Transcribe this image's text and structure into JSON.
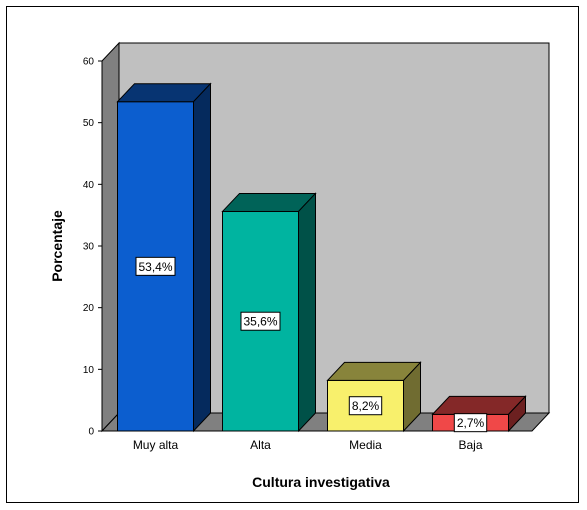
{
  "chart_data": {
    "type": "bar",
    "title": "",
    "xlabel": "Cultura investigativa",
    "ylabel": "Porcentaje",
    "categories": [
      "Muy alta",
      "Alta",
      "Media",
      "Baja"
    ],
    "values": [
      53.4,
      35.6,
      8.2,
      2.7
    ],
    "data_labels": [
      "53,4%",
      "35,6%",
      "8,2%",
      "2,7%"
    ],
    "ylim": [
      0,
      60
    ],
    "yticks": [
      0,
      10,
      20,
      30,
      40,
      50,
      60
    ],
    "bar_colors": [
      "#0c5ecf",
      "#00b4a0",
      "#f8f06c",
      "#f04848"
    ],
    "background_color": "#c0c0c0",
    "style": "3d-bars"
  }
}
